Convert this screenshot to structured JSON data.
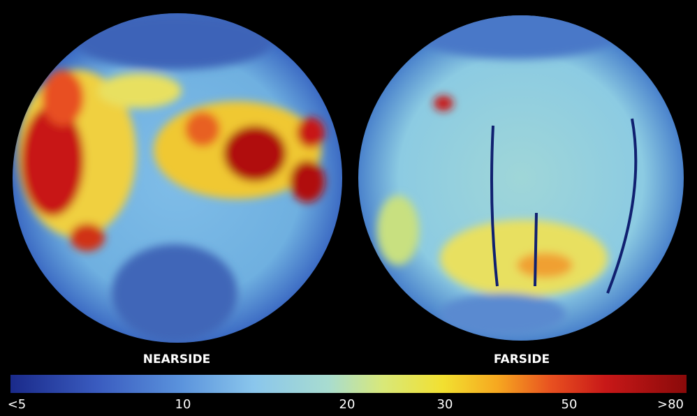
{
  "panels": [
    {
      "label": "NEARSIDE"
    },
    {
      "label": "FARSIDE"
    }
  ],
  "colorbar": {
    "ticks": [
      "<5",
      "10",
      "20",
      "30",
      "50",
      ">80"
    ]
  }
}
